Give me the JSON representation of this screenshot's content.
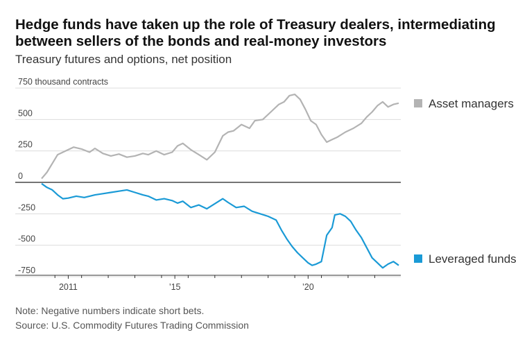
{
  "header": {
    "title": "Hedge funds have taken up the role of Treasury dealers, intermediating between sellers of the bonds and real-money investors",
    "subtitle": "Treasury futures and options, net position"
  },
  "footer": {
    "note": "Note: Negative numbers indicate short bets.",
    "source": "Source: U.S. Commodity Futures Trading Commission"
  },
  "chart_data": {
    "type": "line",
    "ylabel": "750 thousand contracts",
    "ylim": [
      -820,
      780
    ],
    "y_ticks": [
      750,
      500,
      250,
      0,
      -250,
      -500,
      -750
    ],
    "y_tick_labels": [
      "750 thousand contracts",
      "500",
      "250",
      "0",
      "-250",
      "-500",
      "-750"
    ],
    "xlim": [
      2010.0,
      2023.4
    ],
    "x_ticks": [
      2011,
      2015,
      2020
    ],
    "x_tick_labels": [
      "2011",
      "’15",
      "’20"
    ],
    "grid": true,
    "legend_placement": "right",
    "series": [
      {
        "name": "Asset managers",
        "color": "#b3b3b3",
        "x": [
          2010.0,
          2010.2,
          2010.4,
          2010.6,
          2010.8,
          2011.0,
          2011.2,
          2011.5,
          2011.8,
          2012.0,
          2012.3,
          2012.6,
          2012.9,
          2013.2,
          2013.5,
          2013.8,
          2014.0,
          2014.3,
          2014.6,
          2014.9,
          2015.1,
          2015.3,
          2015.6,
          2015.9,
          2016.2,
          2016.5,
          2016.8,
          2017.0,
          2017.2,
          2017.5,
          2017.8,
          2018.0,
          2018.3,
          2018.6,
          2018.9,
          2019.1,
          2019.3,
          2019.5,
          2019.7,
          2019.9,
          2020.1,
          2020.3,
          2020.5,
          2020.7,
          2020.9,
          2021.1,
          2021.4,
          2021.7,
          2022.0,
          2022.2,
          2022.4,
          2022.6,
          2022.8,
          2023.0,
          2023.2,
          2023.4
        ],
        "values": [
          30,
          80,
          150,
          220,
          240,
          260,
          280,
          265,
          240,
          270,
          230,
          210,
          225,
          200,
          210,
          230,
          220,
          250,
          220,
          240,
          290,
          310,
          260,
          220,
          180,
          240,
          370,
          400,
          410,
          460,
          430,
          490,
          500,
          560,
          620,
          640,
          690,
          700,
          660,
          580,
          490,
          460,
          380,
          320,
          340,
          360,
          400,
          430,
          470,
          520,
          560,
          610,
          640,
          600,
          620,
          630
        ]
      },
      {
        "name": "Leveraged funds",
        "color": "#1a9ad6",
        "x": [
          2010.0,
          2010.2,
          2010.4,
          2010.6,
          2010.8,
          2011.0,
          2011.3,
          2011.6,
          2012.0,
          2012.3,
          2012.6,
          2012.9,
          2013.2,
          2013.5,
          2013.8,
          2014.0,
          2014.3,
          2014.6,
          2014.9,
          2015.1,
          2015.3,
          2015.6,
          2015.9,
          2016.2,
          2016.5,
          2016.8,
          2017.0,
          2017.3,
          2017.6,
          2017.9,
          2018.2,
          2018.5,
          2018.8,
          2019.0,
          2019.2,
          2019.4,
          2019.6,
          2019.8,
          2020.0,
          2020.15,
          2020.3,
          2020.5,
          2020.7,
          2020.9,
          2021.0,
          2021.2,
          2021.4,
          2021.6,
          2021.8,
          2022.0,
          2022.2,
          2022.4,
          2022.6,
          2022.8,
          2023.0,
          2023.2,
          2023.4
        ],
        "values": [
          -10,
          -40,
          -60,
          -100,
          -130,
          -125,
          -110,
          -120,
          -100,
          -90,
          -80,
          -70,
          -60,
          -80,
          -100,
          -110,
          -140,
          -130,
          -145,
          -165,
          -150,
          -200,
          -180,
          -210,
          -170,
          -130,
          -160,
          -200,
          -190,
          -230,
          -250,
          -270,
          -300,
          -380,
          -450,
          -510,
          -560,
          -600,
          -640,
          -660,
          -650,
          -630,
          -420,
          -360,
          -260,
          -250,
          -270,
          -310,
          -380,
          -440,
          -520,
          -600,
          -640,
          -680,
          -650,
          -630,
          -660
        ]
      }
    ]
  }
}
